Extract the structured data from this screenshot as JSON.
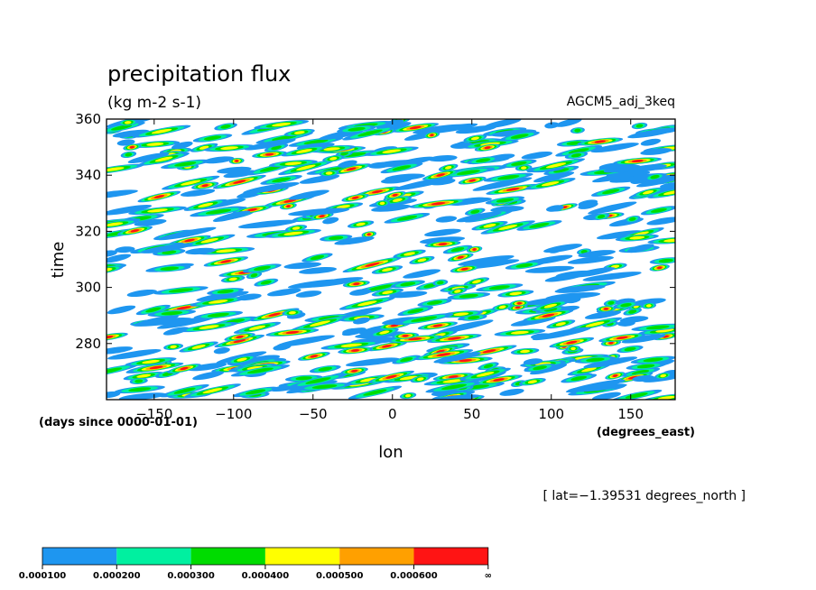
{
  "chart_data": {
    "type": "heatmap",
    "title": "precipitation flux",
    "units": "(kg m-2 s-1)",
    "dataset": "AGCM5_adj_3keq",
    "xlabel": "lon",
    "ylabel": "time",
    "x_units": "(degrees_east)",
    "y_units": "(days since 0000-01-01)",
    "xlim": [
      -180,
      178
    ],
    "ylim": [
      260,
      360
    ],
    "xticks": [
      -150,
      -100,
      -50,
      0,
      50,
      100,
      150
    ],
    "yticks": [
      280,
      300,
      320,
      340,
      360
    ],
    "xtick_labels": [
      "−150",
      "−100",
      "−50",
      "0",
      "50",
      "100",
      "150"
    ],
    "ytick_labels": [
      "280",
      "300",
      "320",
      "340",
      "360"
    ],
    "annotation": "[ lat=−1.39531 degrees_north ]",
    "colorbar": {
      "levels": [
        "0.000100",
        "0.000200",
        "0.000300",
        "0.000400",
        "0.000500",
        "0.000600",
        "∞"
      ],
      "colors": [
        "#1e96f0",
        "#00f0a0",
        "#00dc00",
        "#ffff00",
        "#ffa000",
        "#ff1414"
      ]
    },
    "pattern": {
      "description_of_field": "intermittent eastward-tilted precipitation streaks; values above 0.0001 shaded",
      "band_tilt_deg_per_day": 6,
      "cells": []
    }
  }
}
